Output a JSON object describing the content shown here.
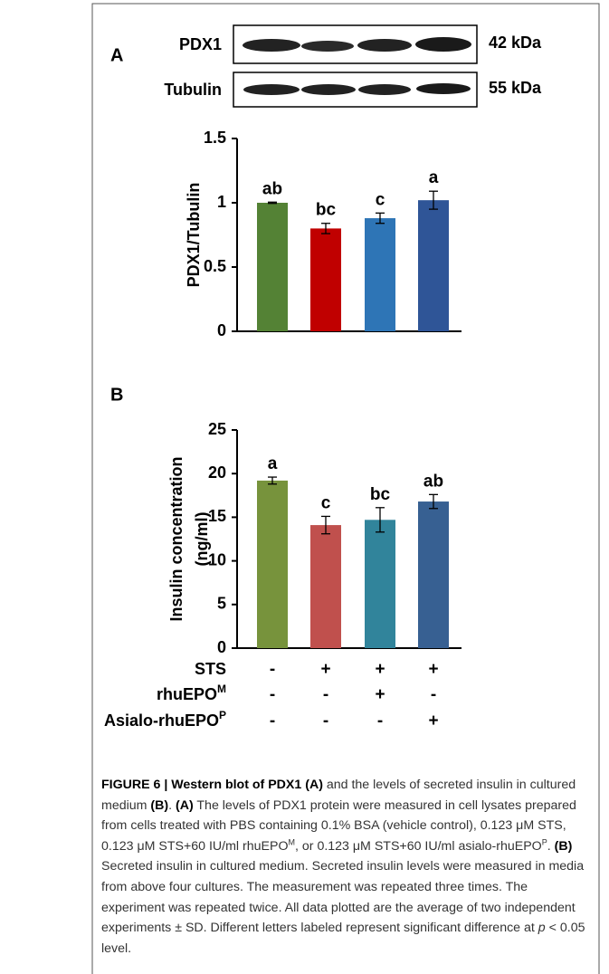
{
  "panel_a": {
    "label": "A",
    "blot": [
      {
        "name": "PDX1",
        "size": "42 kDa"
      },
      {
        "name": "Tubulin",
        "size": "55 kDa"
      }
    ]
  },
  "panel_b": {
    "label": "B"
  },
  "chart_data": [
    {
      "type": "bar",
      "ylabel": [
        "PDX1/Tubulin"
      ],
      "categories": [
        null,
        null,
        null,
        null
      ],
      "values": [
        1.0,
        0.8,
        0.88,
        1.02
      ],
      "errors": [
        0.005,
        0.04,
        0.04,
        0.07
      ],
      "letters": [
        "ab",
        "bc",
        "c",
        "a"
      ],
      "colors": [
        "#548235",
        "#c00000",
        "#2e75b6",
        "#2f5597"
      ],
      "ylim": [
        0,
        1.5
      ],
      "yticks": [
        0,
        0.5,
        1,
        1.5
      ]
    },
    {
      "type": "bar",
      "ylabel": [
        "Insulin concentration",
        "(ng/ml)"
      ],
      "categories": [
        null,
        null,
        null,
        null
      ],
      "values": [
        19.2,
        14.1,
        14.7,
        16.8
      ],
      "errors": [
        0.4,
        1.0,
        1.4,
        0.8
      ],
      "letters": [
        "a",
        "c",
        "bc",
        "ab"
      ],
      "colors": [
        "#77933c",
        "#c0504d",
        "#31849b",
        "#376092"
      ],
      "ylim": [
        0,
        25
      ],
      "yticks": [
        0,
        5,
        10,
        15,
        20,
        25
      ]
    }
  ],
  "treatments": [
    {
      "name": "STS",
      "marks": [
        "-",
        "+",
        "+",
        "+"
      ]
    },
    {
      "name": "rhuEPO",
      "sup": "M",
      "marks": [
        "-",
        "-",
        "+",
        "-"
      ]
    },
    {
      "name": "Asialo-rhuEPO",
      "sup": "P",
      "marks": [
        "-",
        "-",
        "-",
        "+"
      ]
    }
  ],
  "caption": [
    {
      "text": "FIGURE 6 | Western blot of PDX1 (A)",
      "style": "bold"
    },
    {
      "text": " and the levels of secreted insulin in cultured medium "
    },
    {
      "text": "(B)",
      "style": "bold"
    },
    {
      "text": ". "
    },
    {
      "text": "(A)",
      "style": "bold"
    },
    {
      "text": " The levels of PDX1 protein were measured in cell lysates prepared from cells treated with PBS containing 0.1% BSA (vehicle control), 0.123 μM STS, 0.123 μM STS+60 IU/ml rhuEPO"
    },
    {
      "text": "M",
      "style": "sup"
    },
    {
      "text": ", or 0.123 μM STS+60 IU/ml asialo-rhuEPO"
    },
    {
      "text": "P",
      "style": "sup"
    },
    {
      "text": ". "
    },
    {
      "text": "(B)",
      "style": "bold"
    },
    {
      "text": " Secreted insulin in cultured medium. Secreted insulin levels were measured in media from above four cultures. The measurement was repeated three times. The experiment was repeated twice. All data plotted are the average of two independent experiments ± SD. Different letters labeled represent significant difference at "
    },
    {
      "text": "p",
      "style": "italic"
    },
    {
      "text": " < 0.05 level."
    }
  ]
}
